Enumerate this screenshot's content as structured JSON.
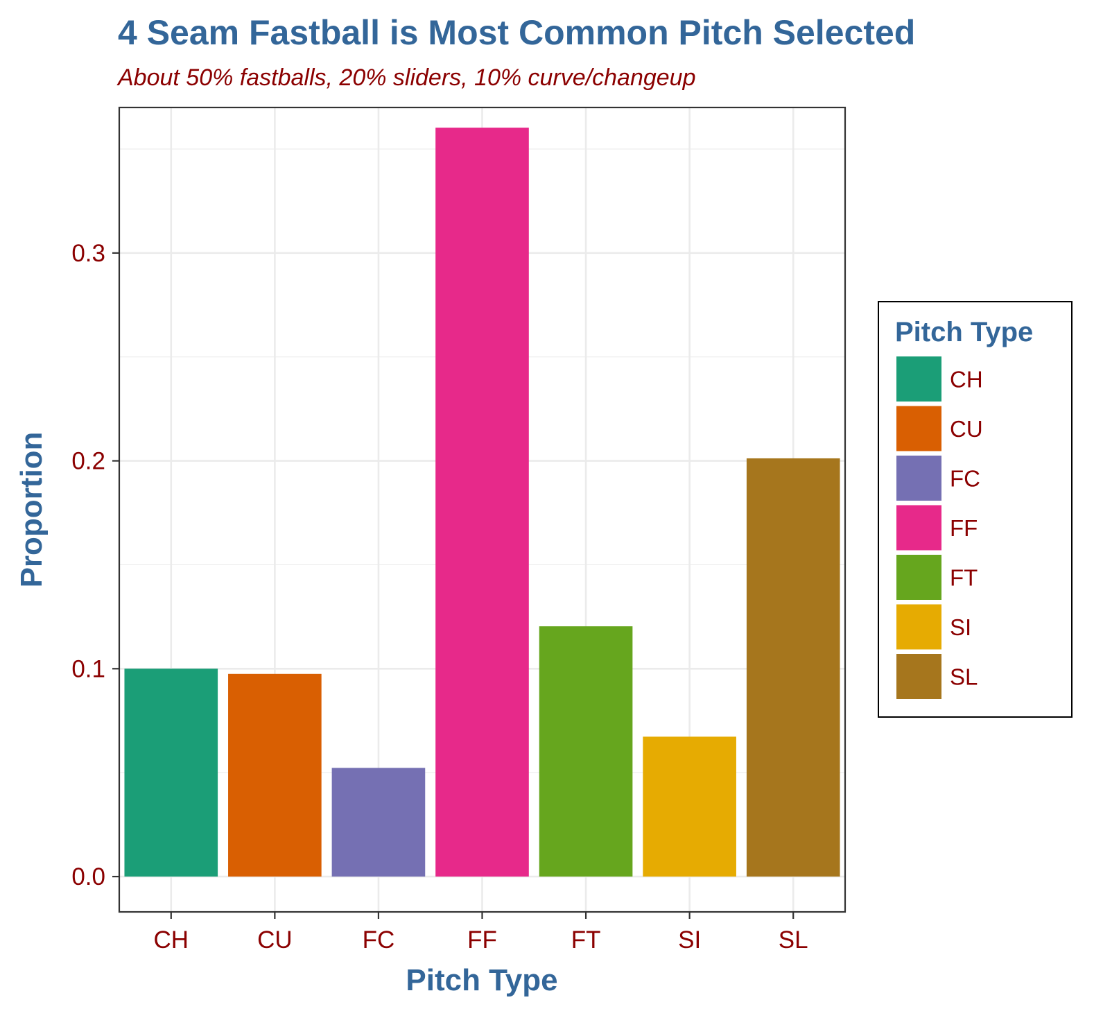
{
  "chart_data": {
    "type": "bar",
    "title": "4 Seam Fastball is Most Common Pitch Selected",
    "subtitle": "About 50% fastballs, 20% sliders, 10% curve/changeup",
    "xlabel": "Pitch Type",
    "ylabel": "Proportion",
    "categories": [
      "CH",
      "CU",
      "FC",
      "FF",
      "FT",
      "SI",
      "SL"
    ],
    "values": [
      0.1,
      0.0975,
      0.0523,
      0.3603,
      0.1204,
      0.0673,
      0.2012
    ],
    "colors": [
      "#1b9e77",
      "#d95f02",
      "#7570b3",
      "#e7298a",
      "#66a61e",
      "#e6ab02",
      "#a6761d"
    ],
    "ylim": [
      -0.017,
      0.37
    ],
    "yticks": [
      0.0,
      0.1,
      0.2,
      0.3
    ],
    "ytick_labels": [
      "0.0",
      "0.1",
      "0.2",
      "0.3"
    ],
    "grid": true,
    "legend": {
      "title": "Pitch Type",
      "position": "right",
      "entries": [
        "CH",
        "CU",
        "FC",
        "FF",
        "FT",
        "SI",
        "SL"
      ]
    }
  }
}
